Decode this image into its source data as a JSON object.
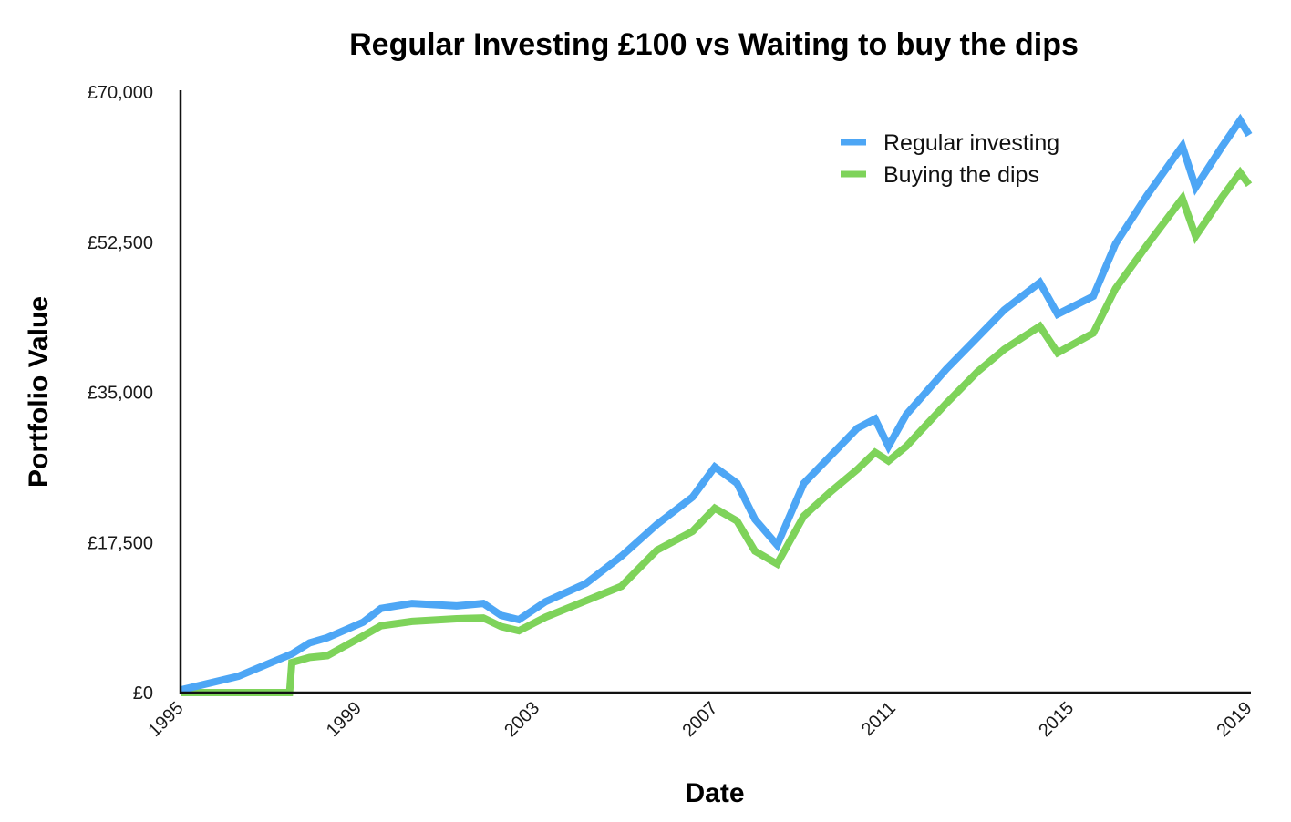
{
  "chart_data": {
    "type": "line",
    "title": "Regular Investing £100 vs Waiting to buy the dips",
    "xlabel": "Date",
    "ylabel": "Portfolio Value",
    "xlim": [
      1995,
      2019
    ],
    "ylim": [
      0,
      70000
    ],
    "x_ticks": [
      1995,
      1999,
      2003,
      2007,
      2011,
      2015,
      2019
    ],
    "x_tick_labels": [
      "1995",
      "1999",
      "2003",
      "2007",
      "2011",
      "2015",
      "2019"
    ],
    "y_ticks": [
      0,
      17500,
      35000,
      52500,
      70000
    ],
    "y_tick_labels": [
      "£0",
      "£17,500",
      "£35,000",
      "£52,500",
      "£70,000"
    ],
    "grid": false,
    "legend": "top-right",
    "series": [
      {
        "name": "Regular investing",
        "color": "#4da6f5",
        "x": [
          1995.0,
          1996.3,
          1997.5,
          1997.9,
          1998.3,
          1999.1,
          1999.5,
          2000.2,
          2001.2,
          2001.8,
          2002.2,
          2002.6,
          2003.2,
          2004.1,
          2004.9,
          2005.7,
          2006.5,
          2007.0,
          2007.5,
          2007.9,
          2008.4,
          2009.0,
          2009.6,
          2010.2,
          2010.6,
          2010.9,
          2011.3,
          2012.2,
          2012.9,
          2013.5,
          2014.3,
          2014.7,
          2015.5,
          2016.0,
          2016.7,
          2017.5,
          2017.8,
          2018.4,
          2018.8,
          2019.0
        ],
        "values": [
          300,
          1900,
          4500,
          5800,
          6400,
          8200,
          9800,
          10400,
          10100,
          10400,
          9000,
          8500,
          10600,
          12700,
          15900,
          19600,
          22800,
          26300,
          24400,
          20200,
          17200,
          24400,
          27600,
          30800,
          31900,
          28700,
          32400,
          37700,
          41400,
          44600,
          47800,
          44100,
          46200,
          52300,
          57900,
          63700,
          58900,
          63700,
          66700,
          65000
        ]
      },
      {
        "name": "Buying the dips",
        "color": "#7ed35a",
        "x": [
          1995.0,
          1996.3,
          1997.45,
          1997.5,
          1997.9,
          1998.3,
          1999.1,
          1999.5,
          2000.2,
          2001.2,
          2001.8,
          2002.2,
          2002.6,
          2003.2,
          2004.1,
          2004.9,
          2005.7,
          2006.5,
          2007.0,
          2007.5,
          2007.9,
          2008.4,
          2009.0,
          2009.6,
          2010.2,
          2010.6,
          2010.9,
          2011.3,
          2012.2,
          2012.9,
          2013.5,
          2014.3,
          2014.7,
          2015.5,
          2016.0,
          2016.7,
          2017.5,
          2017.8,
          2018.4,
          2018.8,
          2019.0
        ],
        "values": [
          0,
          0,
          0,
          3500,
          4100,
          4300,
          6600,
          7800,
          8300,
          8600,
          8700,
          7700,
          7200,
          8800,
          10700,
          12400,
          16600,
          18800,
          21500,
          20000,
          16500,
          15000,
          20600,
          23400,
          26000,
          28000,
          27000,
          28700,
          33700,
          37400,
          40000,
          42700,
          39600,
          41900,
          47100,
          52100,
          57600,
          53200,
          57800,
          60600,
          59200
        ]
      }
    ]
  }
}
